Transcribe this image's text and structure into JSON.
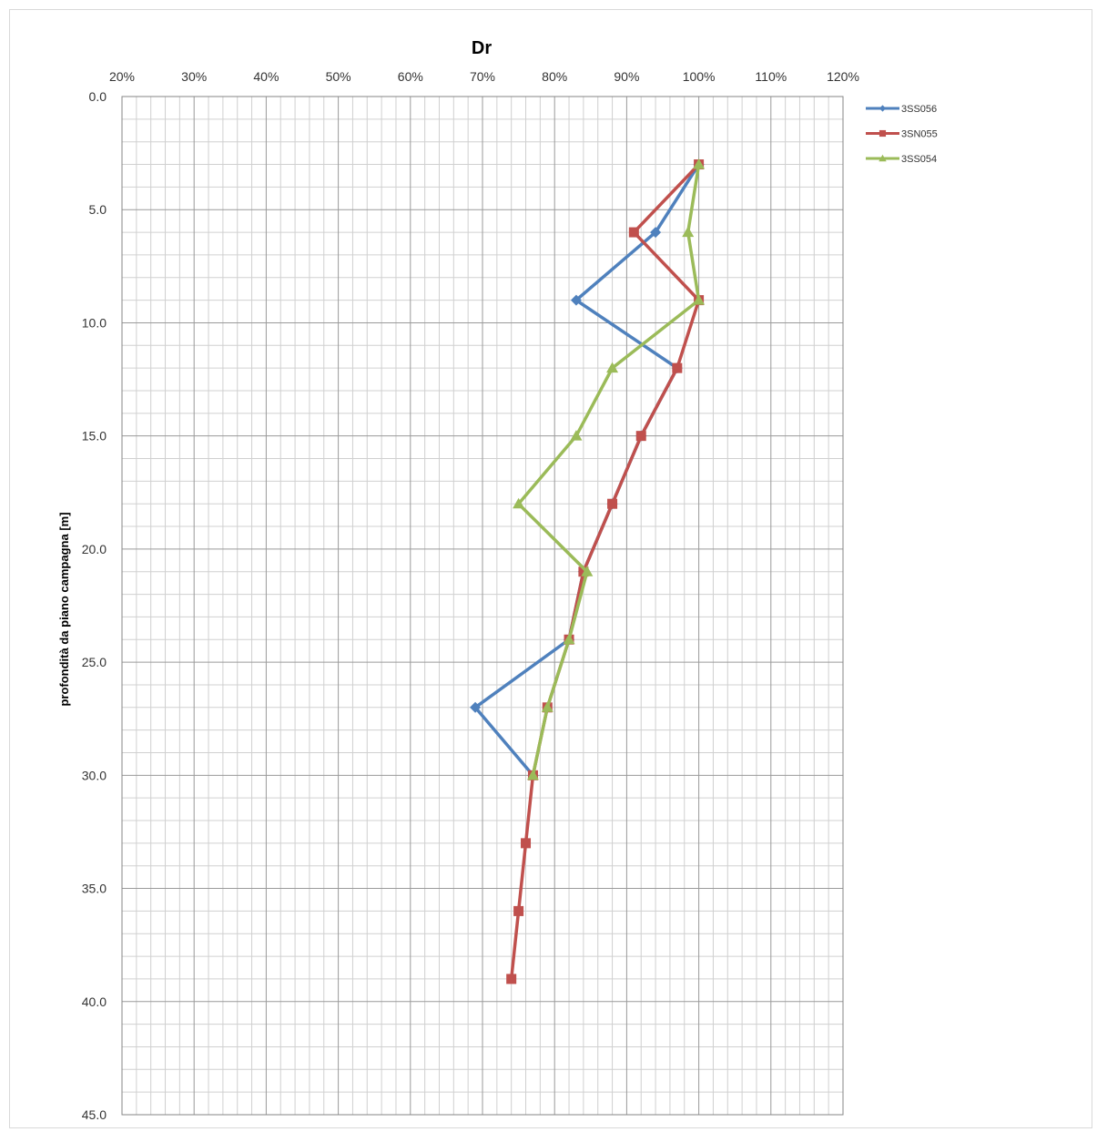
{
  "chart_data": {
    "type": "line",
    "title": "Dr",
    "xlabel": "",
    "ylabel": "profondità da piano campagna [m]",
    "x_axis_position": "top",
    "y_axis_inverted": true,
    "xlim": [
      0.2,
      1.2
    ],
    "ylim": [
      0,
      45
    ],
    "x_ticks": [
      "20%",
      "30%",
      "40%",
      "50%",
      "60%",
      "70%",
      "80%",
      "90%",
      "100%",
      "110%",
      "120%"
    ],
    "y_ticks": [
      "0.0",
      "5.0",
      "10.0",
      "15.0",
      "20.0",
      "25.0",
      "30.0",
      "35.0",
      "40.0",
      "45.0"
    ],
    "grid": true,
    "legend_position": "top-right",
    "series": [
      {
        "name": "3SS056",
        "color": "#4f81bd",
        "marker": "diamond",
        "points": [
          [
            1.0,
            3
          ],
          [
            0.94,
            6
          ],
          [
            0.83,
            9
          ],
          [
            0.97,
            12
          ],
          [
            0.92,
            15
          ],
          [
            0.88,
            18
          ],
          [
            0.84,
            21
          ],
          [
            0.82,
            24
          ],
          [
            0.69,
            27
          ],
          [
            0.77,
            30
          ]
        ]
      },
      {
        "name": "3SN055",
        "color": "#c0504d",
        "marker": "square",
        "points": [
          [
            1.0,
            3
          ],
          [
            0.91,
            6
          ],
          [
            1.0,
            9
          ],
          [
            0.97,
            12
          ],
          [
            0.92,
            15
          ],
          [
            0.88,
            18
          ],
          [
            0.84,
            21
          ],
          [
            0.82,
            24
          ],
          [
            0.79,
            27
          ],
          [
            0.77,
            30
          ],
          [
            0.76,
            33
          ],
          [
            0.75,
            36
          ],
          [
            0.74,
            39
          ]
        ]
      },
      {
        "name": "3SS054",
        "color": "#9bbb59",
        "marker": "triangle",
        "points": [
          [
            1.0,
            3
          ],
          [
            0.985,
            6
          ],
          [
            1.0,
            9
          ],
          [
            0.88,
            12
          ],
          [
            0.83,
            15
          ],
          [
            0.75,
            18
          ],
          [
            0.845,
            21
          ],
          [
            0.82,
            24
          ],
          [
            0.79,
            27
          ],
          [
            0.77,
            30
          ]
        ]
      }
    ]
  }
}
